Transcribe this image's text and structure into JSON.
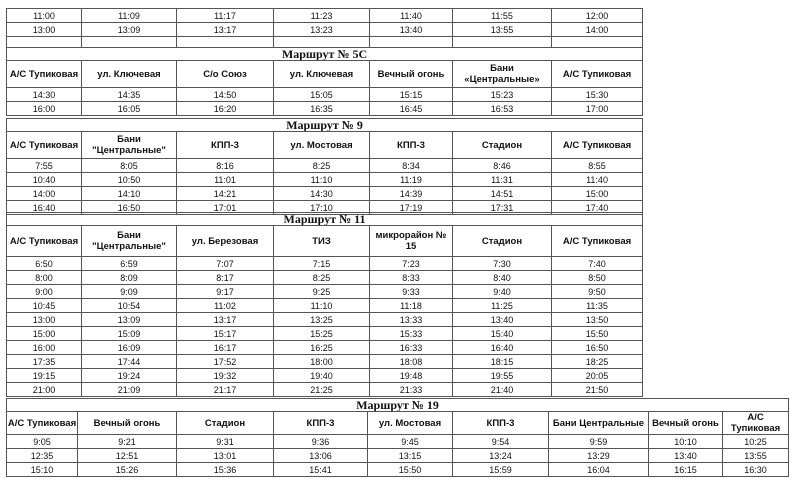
{
  "top_rows": [
    [
      "11:00",
      "11:09",
      "11:17",
      "11:23",
      "11:40",
      "11:55",
      "12:00"
    ],
    [
      "13:00",
      "13:09",
      "13:17",
      "13:23",
      "13:40",
      "13:55",
      "14:00"
    ]
  ],
  "routes": [
    {
      "title": "Маршрут № 5С",
      "stops": [
        "А/С Тупиковая",
        "ул. Ключевая",
        "С/о Союз",
        "ул. Ключевая",
        "Вечный огонь",
        "Бани «Центральные»",
        "А/С Тупиковая"
      ],
      "rows": [
        [
          "14:30",
          "14:35",
          "14:50",
          "15:05",
          "15:15",
          "15:23",
          "15:30"
        ],
        [
          "16:00",
          "16:05",
          "16:20",
          "16:35",
          "16:45",
          "16:53",
          "17:00"
        ]
      ]
    },
    {
      "title": "Маршрут № 9",
      "stops": [
        "А/С Тупиковая",
        "Бани \"Центральные\"",
        "КПП-3",
        "ул. Мостовая",
        "КПП-3",
        "Стадион",
        "А/С Тупиковая"
      ],
      "rows": [
        [
          "7:55",
          "8:05",
          "8:16",
          "8:25",
          "8:34",
          "8:46",
          "8:55"
        ],
        [
          "10:40",
          "10:50",
          "11:01",
          "11:10",
          "11:19",
          "11:31",
          "11:40"
        ],
        [
          "14:00",
          "14:10",
          "14:21",
          "14:30",
          "14:39",
          "14:51",
          "15:00"
        ],
        [
          "16:40",
          "16:50",
          "17:01",
          "17:10",
          "17:19",
          "17:31",
          "17:40"
        ]
      ]
    },
    {
      "title": "Маршрут № 11",
      "stops": [
        "А/С Тупиковая",
        "Бани \"Центральные\"",
        "ул. Березовая",
        "ТИЗ",
        "микрорайон № 15",
        "Стадион",
        "А/С Тупиковая"
      ],
      "rows": [
        [
          "6:50",
          "6:59",
          "7:07",
          "7:15",
          "7:23",
          "7:30",
          "7:40"
        ],
        [
          "8:00",
          "8:09",
          "8:17",
          "8:25",
          "8:33",
          "8:40",
          "8:50"
        ],
        [
          "9:00",
          "9:09",
          "9:17",
          "9:25",
          "9:33",
          "9:40",
          "9:50"
        ],
        [
          "10:45",
          "10:54",
          "11:02",
          "11:10",
          "11:18",
          "11:25",
          "11:35"
        ],
        [
          "13:00",
          "13:09",
          "13:17",
          "13:25",
          "13:33",
          "13:40",
          "13:50"
        ],
        [
          "15:00",
          "15:09",
          "15:17",
          "15:25",
          "15:33",
          "15:40",
          "15:50"
        ],
        [
          "16:00",
          "16:09",
          "16:17",
          "16:25",
          "16:33",
          "16:40",
          "16:50"
        ],
        [
          "17:35",
          "17:44",
          "17:52",
          "18:00",
          "18:08",
          "18:15",
          "18:25"
        ],
        [
          "19:15",
          "19:24",
          "19:32",
          "19:40",
          "19:48",
          "19:55",
          "20:05"
        ],
        [
          "21:00",
          "21:09",
          "21:17",
          "21:25",
          "21:33",
          "21:40",
          "21:50"
        ]
      ]
    },
    {
      "title": "Маршрут № 19",
      "stops": [
        "А/С Тупиковая",
        "Вечный огонь",
        "Стадион",
        "КПП-3",
        "ул. Мостовая",
        "КПП-3",
        "Бани Центральные",
        "Вечный огонь",
        "А/С Тупиковая"
      ],
      "rows": [
        [
          "9:05",
          "9:21",
          "9:31",
          "9:36",
          "9:45",
          "9:54",
          "9:59",
          "10:10",
          "10:25"
        ],
        [
          "12:35",
          "12:51",
          "13:01",
          "13:06",
          "13:15",
          "13:24",
          "13:29",
          "13:40",
          "13:55"
        ],
        [
          "15:10",
          "15:26",
          "15:36",
          "15:41",
          "15:50",
          "15:59",
          "16:04",
          "16:15",
          "16:30"
        ]
      ]
    }
  ]
}
